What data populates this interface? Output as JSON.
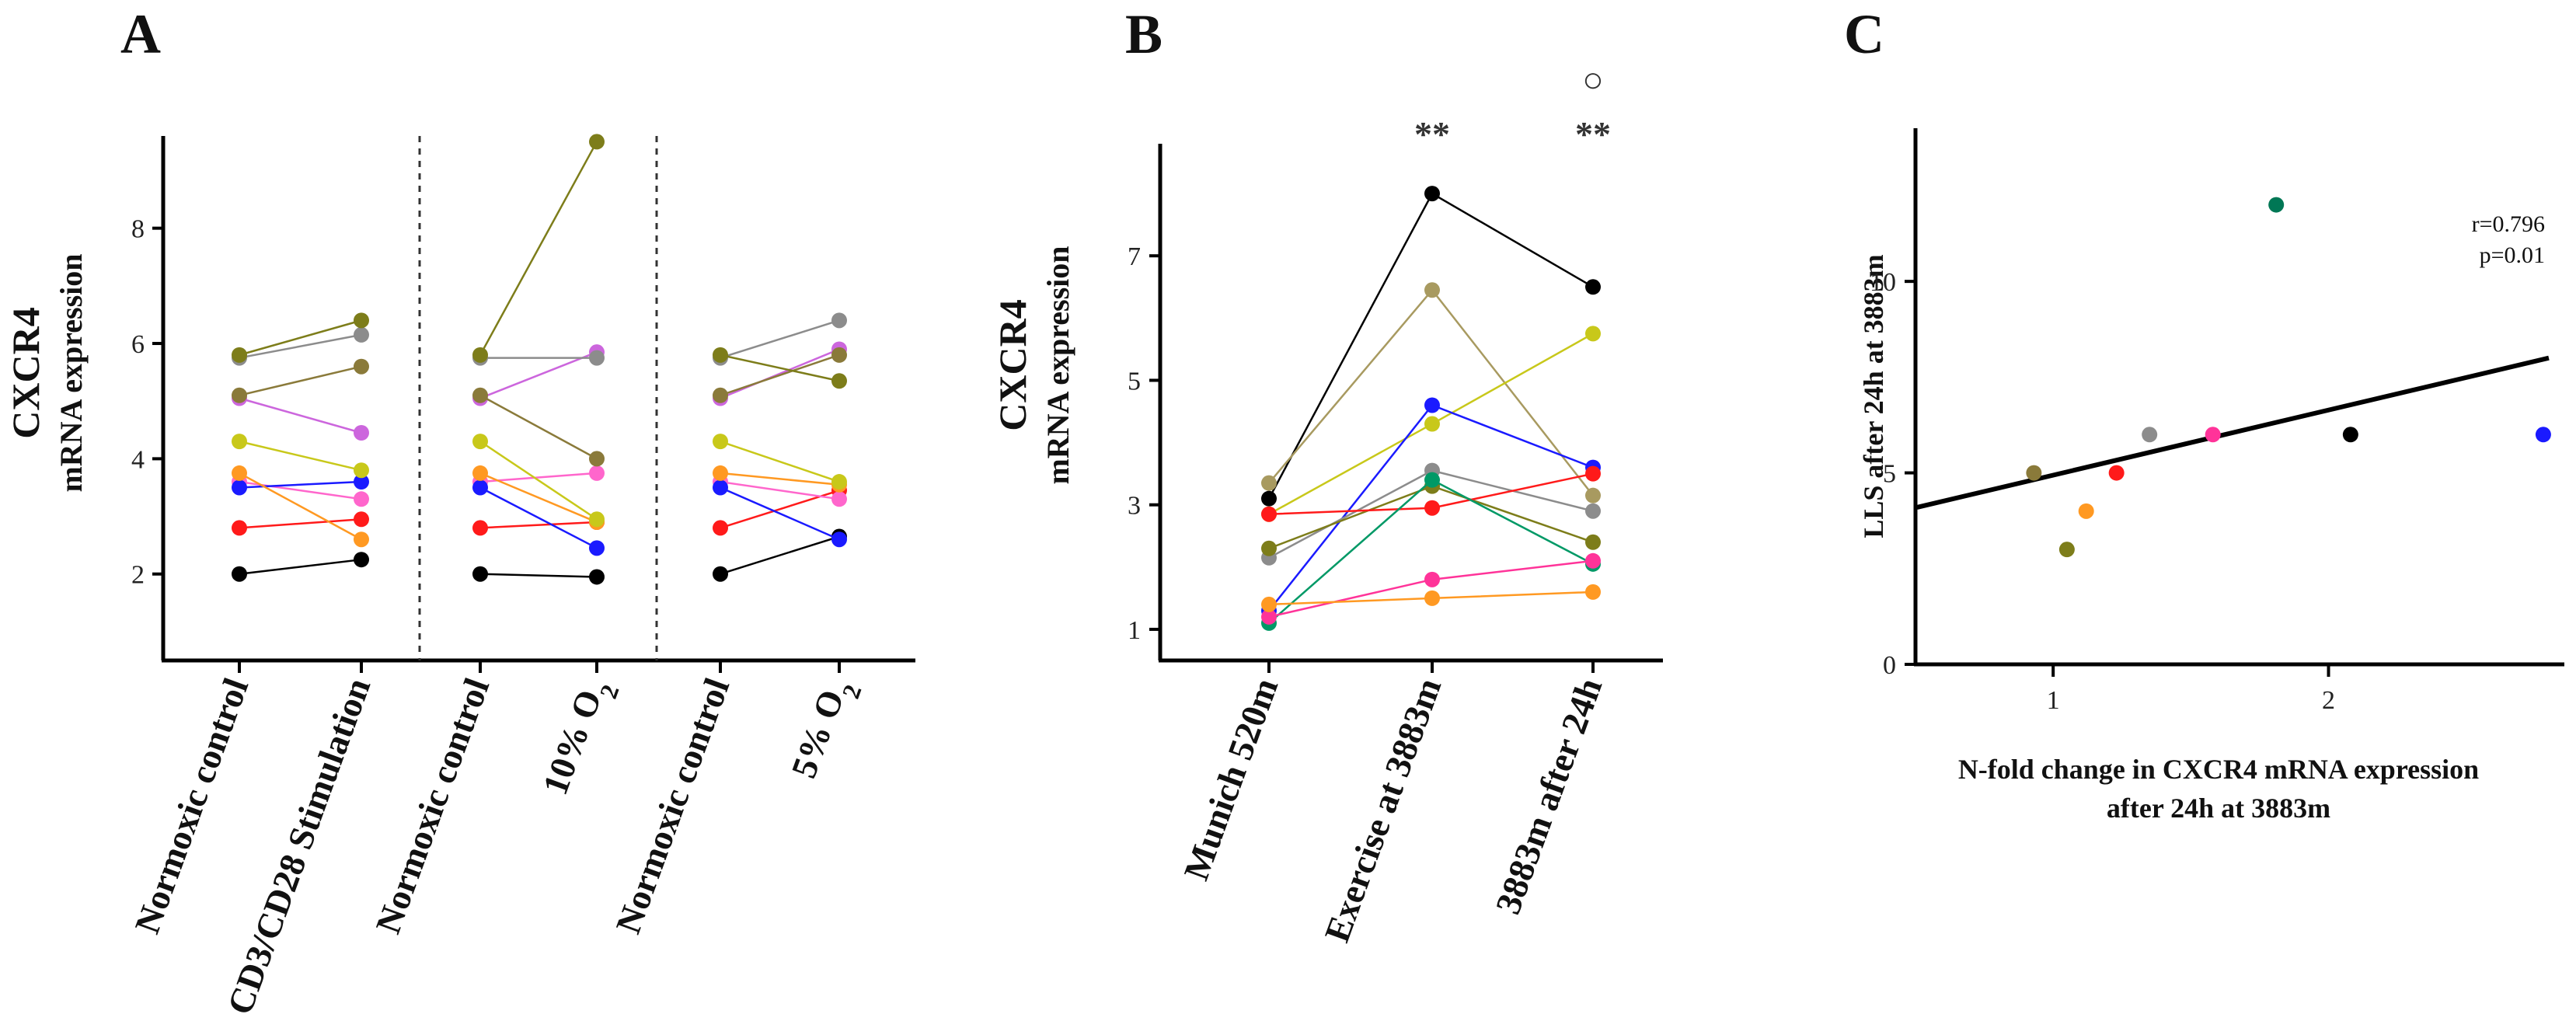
{
  "chart_data": [
    {
      "panel": "A",
      "type": "line",
      "ylabel_line1": "CXCR4",
      "ylabel_line2": "mRNA expression",
      "ylim": [
        0.5,
        9.6
      ],
      "yticks": [
        2,
        4,
        6,
        8
      ],
      "groups": [
        {
          "categories": [
            "Normoxic control",
            "CD3/CD28 Stimulation"
          ],
          "series": [
            {
              "color": "#000000",
              "values": [
                2.0,
                2.25
              ]
            },
            {
              "color": "#ff1a1a",
              "values": [
                2.8,
                2.95
              ]
            },
            {
              "color": "#ff66cc",
              "values": [
                3.6,
                3.3
              ]
            },
            {
              "color": "#1a1aff",
              "values": [
                3.5,
                3.6
              ]
            },
            {
              "color": "#ff9922",
              "values": [
                3.75,
                2.6
              ]
            },
            {
              "color": "#c8c81a",
              "values": [
                4.3,
                3.8
              ]
            },
            {
              "color": "#cc66dd",
              "values": [
                5.05,
                4.45
              ]
            },
            {
              "color": "#8c8c8c",
              "values": [
                5.75,
                6.15
              ]
            },
            {
              "color": "#8a7a3a",
              "values": [
                5.1,
                5.6
              ]
            },
            {
              "color": "#7d7d1a",
              "values": [
                5.8,
                6.4
              ]
            }
          ]
        },
        {
          "categories": [
            "Normoxic control",
            "10% O2"
          ],
          "series": [
            {
              "color": "#000000",
              "values": [
                2.0,
                1.95
              ]
            },
            {
              "color": "#ff1a1a",
              "values": [
                2.8,
                2.9
              ]
            },
            {
              "color": "#ff66cc",
              "values": [
                3.6,
                3.75
              ]
            },
            {
              "color": "#1a1aff",
              "values": [
                3.5,
                2.45
              ]
            },
            {
              "color": "#ff9922",
              "values": [
                3.75,
                2.9
              ]
            },
            {
              "color": "#c8c81a",
              "values": [
                4.3,
                2.95
              ]
            },
            {
              "color": "#cc66dd",
              "values": [
                5.05,
                5.85
              ]
            },
            {
              "color": "#8c8c8c",
              "values": [
                5.75,
                5.75
              ]
            },
            {
              "color": "#8a7a3a",
              "values": [
                5.1,
                4.0
              ]
            },
            {
              "color": "#7d7d1a",
              "values": [
                5.8,
                9.5
              ]
            }
          ]
        },
        {
          "categories": [
            "Normoxic control",
            "5% O2"
          ],
          "series": [
            {
              "color": "#000000",
              "values": [
                2.0,
                2.65
              ]
            },
            {
              "color": "#ff1a1a",
              "values": [
                2.8,
                3.45
              ]
            },
            {
              "color": "#ff66cc",
              "values": [
                3.6,
                3.3
              ]
            },
            {
              "color": "#1a1aff",
              "values": [
                3.5,
                2.6
              ]
            },
            {
              "color": "#ff9922",
              "values": [
                3.75,
                3.55
              ]
            },
            {
              "color": "#c8c81a",
              "values": [
                4.3,
                3.6
              ]
            },
            {
              "color": "#cc66dd",
              "values": [
                5.05,
                5.9
              ]
            },
            {
              "color": "#8c8c8c",
              "values": [
                5.75,
                6.4
              ]
            },
            {
              "color": "#8a7a3a",
              "values": [
                5.1,
                5.8
              ]
            },
            {
              "color": "#7d7d1a",
              "values": [
                5.8,
                5.35
              ]
            }
          ]
        }
      ]
    },
    {
      "panel": "B",
      "type": "line",
      "ylabel_line1": "CXCR4",
      "ylabel_line2": "mRNA expression",
      "ylim": [
        0.5,
        8.8
      ],
      "yticks": [
        1,
        3,
        5,
        7
      ],
      "categories": [
        "Munich 520m",
        "Exercise at 3883m",
        "3883m after 24h"
      ],
      "annotations": [
        {
          "category": 1,
          "text": "**"
        },
        {
          "category": 2,
          "text": "**"
        },
        {
          "category": 2,
          "text": "○"
        }
      ],
      "series": [
        {
          "color": "#000000",
          "values": [
            3.1,
            8.0,
            6.5
          ]
        },
        {
          "color": "#a89a60",
          "values": [
            3.35,
            6.45,
            3.15
          ]
        },
        {
          "color": "#c8c81a",
          "values": [
            2.85,
            4.3,
            5.75
          ]
        },
        {
          "color": "#1a1aff",
          "values": [
            1.3,
            4.6,
            3.6
          ]
        },
        {
          "color": "#8c8c8c",
          "values": [
            2.15,
            3.55,
            2.9
          ]
        },
        {
          "color": "#7d7d1a",
          "values": [
            2.3,
            3.3,
            2.4
          ]
        },
        {
          "color": "#ff1a1a",
          "values": [
            2.85,
            2.95,
            3.5
          ]
        },
        {
          "color": "#009966",
          "values": [
            1.1,
            3.4,
            2.05
          ]
        },
        {
          "color": "#ff3399",
          "values": [
            1.2,
            1.8,
            2.1
          ]
        },
        {
          "color": "#ff9922",
          "values": [
            1.4,
            1.5,
            1.6
          ]
        }
      ]
    },
    {
      "panel": "C",
      "type": "scatter",
      "xlabel_line1": "N-fold change in CXCR4 mRNA expression",
      "xlabel_line2": "after 24h at 3883m",
      "ylabel": "LLS after 24h at 3883m",
      "xlim": [
        0.5,
        2.8
      ],
      "ylim": [
        0,
        14
      ],
      "xticks": [
        1,
        2
      ],
      "yticks": [
        0,
        5,
        10
      ],
      "stats": {
        "r": "r=0.796",
        "p": "p=0.01"
      },
      "trendline": {
        "x": [
          0.5,
          2.8
        ],
        "y": [
          4.1,
          8.0
        ]
      },
      "points": [
        {
          "x": 0.93,
          "y": 5,
          "color": "#8a7a3a"
        },
        {
          "x": 1.05,
          "y": 3,
          "color": "#7d7d1a"
        },
        {
          "x": 1.12,
          "y": 4,
          "color": "#ff9922"
        },
        {
          "x": 1.23,
          "y": 5,
          "color": "#ff1a1a"
        },
        {
          "x": 1.35,
          "y": 6,
          "color": "#8c8c8c"
        },
        {
          "x": 1.58,
          "y": 6,
          "color": "#ff3399"
        },
        {
          "x": 1.81,
          "y": 12,
          "color": "#007755"
        },
        {
          "x": 2.08,
          "y": 6,
          "color": "#000000"
        },
        {
          "x": 2.78,
          "y": 6,
          "color": "#1a1aff"
        }
      ]
    }
  ]
}
